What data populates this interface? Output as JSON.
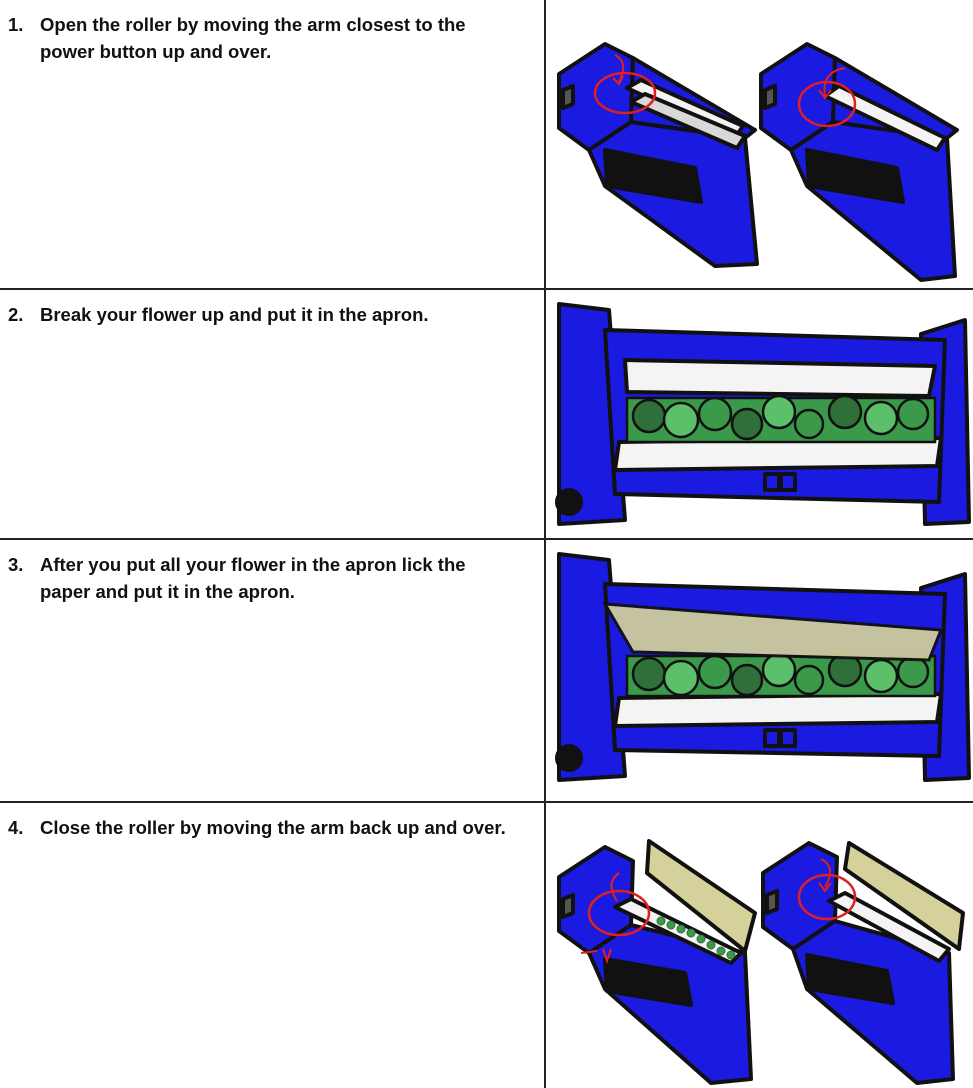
{
  "steps": [
    {
      "number": "1.",
      "text": "Open the roller by moving the arm closest to the power button up and over."
    },
    {
      "number": "2.",
      "text": "Break your flower up and put it in the apron."
    },
    {
      "number": "3.",
      "text": "After you put all your flower in the apron lick the paper and put it in the apron."
    },
    {
      "number": "4.",
      "text": "Close the roller by moving the arm back up and over."
    }
  ],
  "colors": {
    "machine_blue": "#1a1ae0",
    "outline": "#111111",
    "roller_white": "#f4f4f4",
    "roller_gray": "#bdbdbd",
    "flower_green": "#3a9a4a",
    "flower_light": "#5cc06a",
    "flower_dark": "#2f6f3a",
    "paper_tan": "#d4d19a",
    "annotation_red": "#e02020"
  },
  "icons": [
    "arm-rotate-arrow-icon",
    "red-circle-annotation-icon"
  ]
}
